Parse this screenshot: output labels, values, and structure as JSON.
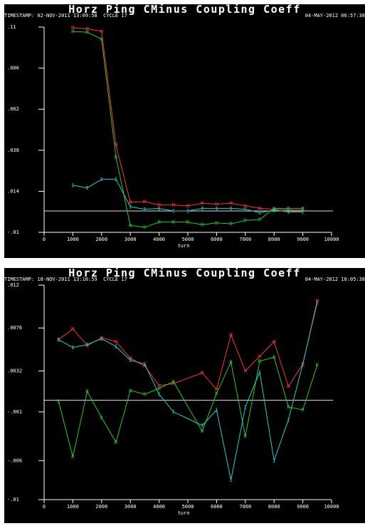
{
  "chart_data": [
    {
      "type": "line",
      "title": "Horz Ping CMinus Coupling Coeff",
      "timestamp_left": "TIMESTAMP: 02-NOV-2011 13:09:58  CYCLE 17",
      "timestamp_right": "04-MAY-2012 06:57:38",
      "xlabel": "turn",
      "ylabel": "",
      "xlim": [
        0,
        10000
      ],
      "ylim": [
        -0.01,
        0.11
      ],
      "xticks": [
        "0",
        "1000",
        "2000",
        "3000",
        "4000",
        "5000",
        "6000",
        "7000",
        "8000",
        "9000",
        "10000"
      ],
      "yticks": [
        {
          "value": 0.11,
          "label": ".11"
        },
        {
          "value": 0.086,
          "label": ".086"
        },
        {
          "value": 0.062,
          "label": ".062"
        },
        {
          "value": 0.038,
          "label": ".038"
        },
        {
          "value": 0.014,
          "label": ".014"
        },
        {
          "value": -0.01,
          "label": "-.01"
        }
      ],
      "reference_line": 0.0025,
      "series": [
        {
          "color": "#ff3333",
          "marker": "M",
          "x": [
            1000,
            1500,
            2000,
            2500,
            3000,
            3500,
            4000,
            4500,
            5000,
            5500,
            6000,
            6500,
            7000,
            7500,
            8000,
            8500,
            9000
          ],
          "y": [
            0.1095,
            0.109,
            0.1075,
            0.041,
            0.0075,
            0.008,
            0.006,
            0.006,
            0.0055,
            0.007,
            0.0065,
            0.007,
            0.0055,
            0.004,
            0.0035,
            0.003,
            0.003
          ]
        },
        {
          "color": "#22cc22",
          "marker": "R",
          "x": [
            1000,
            1500,
            2000,
            2500,
            3000,
            3500,
            4000,
            4500,
            5000,
            5500,
            6000,
            6500,
            7000,
            7500,
            8000,
            8500,
            9000
          ],
          "y": [
            0.1075,
            0.107,
            0.103,
            0.034,
            -0.006,
            -0.007,
            -0.004,
            -0.004,
            -0.004,
            -0.0055,
            -0.0045,
            -0.005,
            -0.003,
            -0.0025,
            0.004,
            0.004,
            0.004
          ]
        },
        {
          "color": "#22cccc",
          "marker": "I",
          "x": [
            1000,
            1500,
            2000,
            2500,
            3000,
            3500,
            4000,
            4500,
            5000,
            5500,
            6000,
            6500,
            7000,
            7500,
            8000,
            8500,
            9000
          ],
          "y": [
            0.0175,
            0.016,
            0.021,
            0.021,
            0.005,
            0.0035,
            0.004,
            0.0025,
            0.0025,
            0.004,
            0.004,
            0.004,
            0.0035,
            0.0015,
            0.003,
            0.002,
            0.002
          ]
        }
      ]
    },
    {
      "type": "line",
      "title": "Horz Ping CMinus Coupling Coeff",
      "timestamp_left": "TIMESTAMP: 18-NOV-2011 13:10:59  CYCLE 17",
      "timestamp_right": "04-MAY-2012 10:05:38",
      "xlabel": "turn",
      "ylabel": "",
      "xlim": [
        0,
        10000
      ],
      "ylim": [
        -0.01,
        0.012
      ],
      "xticks": [
        "0",
        "1000",
        "2000",
        "3000",
        "4000",
        "5000",
        "6000",
        "7000",
        "8000",
        "9000",
        "10000"
      ],
      "yticks": [
        {
          "value": 0.012,
          "label": ".012"
        },
        {
          "value": 0.0076,
          "label": ".0076"
        },
        {
          "value": 0.0032,
          "label": ".0032"
        },
        {
          "value": -0.001,
          "label": "-.001"
        },
        {
          "value": -0.006,
          "label": "-.006"
        },
        {
          "value": -0.01,
          "label": "-.01"
        }
      ],
      "reference_line": 0.0002,
      "series": [
        {
          "color": "#ff3333",
          "marker": "M",
          "x": [
            500,
            1000,
            1500,
            2000,
            2500,
            3000,
            3500,
            4000,
            4500,
            5500,
            6000,
            6500,
            7000,
            7500,
            8000,
            8500,
            9000,
            9500
          ],
          "y": [
            0.0064,
            0.0075,
            0.0058,
            0.0066,
            0.0062,
            0.0045,
            0.0037,
            0.0017,
            0.0019,
            0.003,
            0.0013,
            0.0069,
            0.0032,
            0.0047,
            0.0062,
            0.0016,
            0.0039,
            0.0104
          ]
        },
        {
          "color": "#22cc22",
          "marker": "R",
          "x": [
            500,
            1000,
            1500,
            2000,
            2500,
            3000,
            3500,
            4000,
            4500,
            5500,
            6000,
            6500,
            7000,
            7500,
            8000,
            8500,
            9000,
            9500
          ],
          "y": [
            0.0001,
            -0.0056,
            0.0011,
            -0.0016,
            -0.0041,
            0.0012,
            0.0008,
            0.0014,
            0.0021,
            -0.003,
            0.0009,
            0.0041,
            -0.0035,
            0.0042,
            0.0046,
            -0.0005,
            -0.0008,
            0.0038
          ]
        },
        {
          "color": "#22cccc",
          "marker": "I",
          "x": [
            500,
            1000,
            1500,
            2000,
            2500,
            3000,
            3500,
            4000,
            4500,
            5500,
            6000,
            6500,
            7000,
            7500,
            8000,
            8500,
            9000,
            9500
          ],
          "y": [
            0.0064,
            0.0056,
            0.0059,
            0.0065,
            0.0057,
            0.0043,
            0.0039,
            0.0008,
            -0.001,
            -0.0024,
            -0.0008,
            -0.008,
            -0.0005,
            0.0031,
            -0.006,
            -0.0018,
            0.0039,
            0.0102
          ]
        }
      ]
    }
  ]
}
